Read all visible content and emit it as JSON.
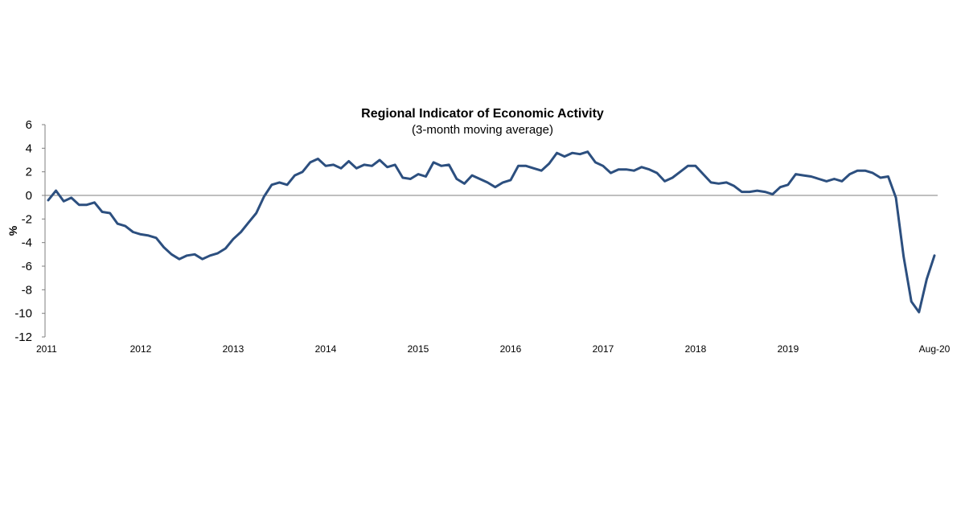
{
  "chart_data": {
    "type": "line",
    "title": "Regional Indicator of Economic Activity",
    "subtitle": "(3-month moving average)",
    "ylabel": "%",
    "xlabel": "",
    "ylim": [
      -12,
      6
    ],
    "yticks": [
      6,
      4,
      2,
      0,
      -2,
      -4,
      -6,
      -8,
      -10,
      -12
    ],
    "xlim": [
      0,
      115
    ],
    "xticks": [
      {
        "label": "2011",
        "x": 0
      },
      {
        "label": "2012",
        "x": 12
      },
      {
        "label": "2013",
        "x": 24
      },
      {
        "label": "2014",
        "x": 36
      },
      {
        "label": "2015",
        "x": 48
      },
      {
        "label": "2016",
        "x": 60
      },
      {
        "label": "2017",
        "x": 72
      },
      {
        "label": "2018",
        "x": 84
      },
      {
        "label": "2019",
        "x": 96
      },
      {
        "label": "Aug-20",
        "x": 115
      }
    ],
    "grid": false,
    "zero_line": true,
    "line_color": "#2c4f7f",
    "series": [
      {
        "name": "",
        "x_start": "2011-01",
        "x_end": "2020-08",
        "frequency": "monthly",
        "values": [
          -0.4,
          0.4,
          -0.5,
          -0.2,
          -0.8,
          -0.8,
          -0.6,
          -1.4,
          -1.5,
          -2.4,
          -2.6,
          -3.1,
          -3.3,
          -3.4,
          -3.6,
          -4.4,
          -5.0,
          -5.4,
          -5.1,
          -5.0,
          -5.4,
          -5.1,
          -4.9,
          -4.5,
          -3.7,
          -3.1,
          -2.3,
          -1.5,
          -0.1,
          0.9,
          1.1,
          0.9,
          1.7,
          2.0,
          2.8,
          3.1,
          2.5,
          2.6,
          2.3,
          2.9,
          2.3,
          2.6,
          2.5,
          3.0,
          2.4,
          2.6,
          1.5,
          1.4,
          1.8,
          1.6,
          2.8,
          2.5,
          2.6,
          1.4,
          1.0,
          1.7,
          1.4,
          1.1,
          0.7,
          1.1,
          1.3,
          2.5,
          2.5,
          2.3,
          2.1,
          2.7,
          3.6,
          3.3,
          3.6,
          3.5,
          3.7,
          2.8,
          2.5,
          1.9,
          2.2,
          2.2,
          2.1,
          2.4,
          2.2,
          1.9,
          1.2,
          1.5,
          2.0,
          2.5,
          2.5,
          1.8,
          1.1,
          1.0,
          1.1,
          0.8,
          0.3,
          0.3,
          0.4,
          0.3,
          0.1,
          0.7,
          0.9,
          1.8,
          1.7,
          1.6,
          1.4,
          1.2,
          1.4,
          1.2,
          1.8,
          2.1,
          2.1,
          1.9,
          1.5,
          1.6,
          -0.2,
          -5.2,
          -9.0,
          -9.9,
          -7.1,
          -5.1
        ]
      }
    ]
  }
}
